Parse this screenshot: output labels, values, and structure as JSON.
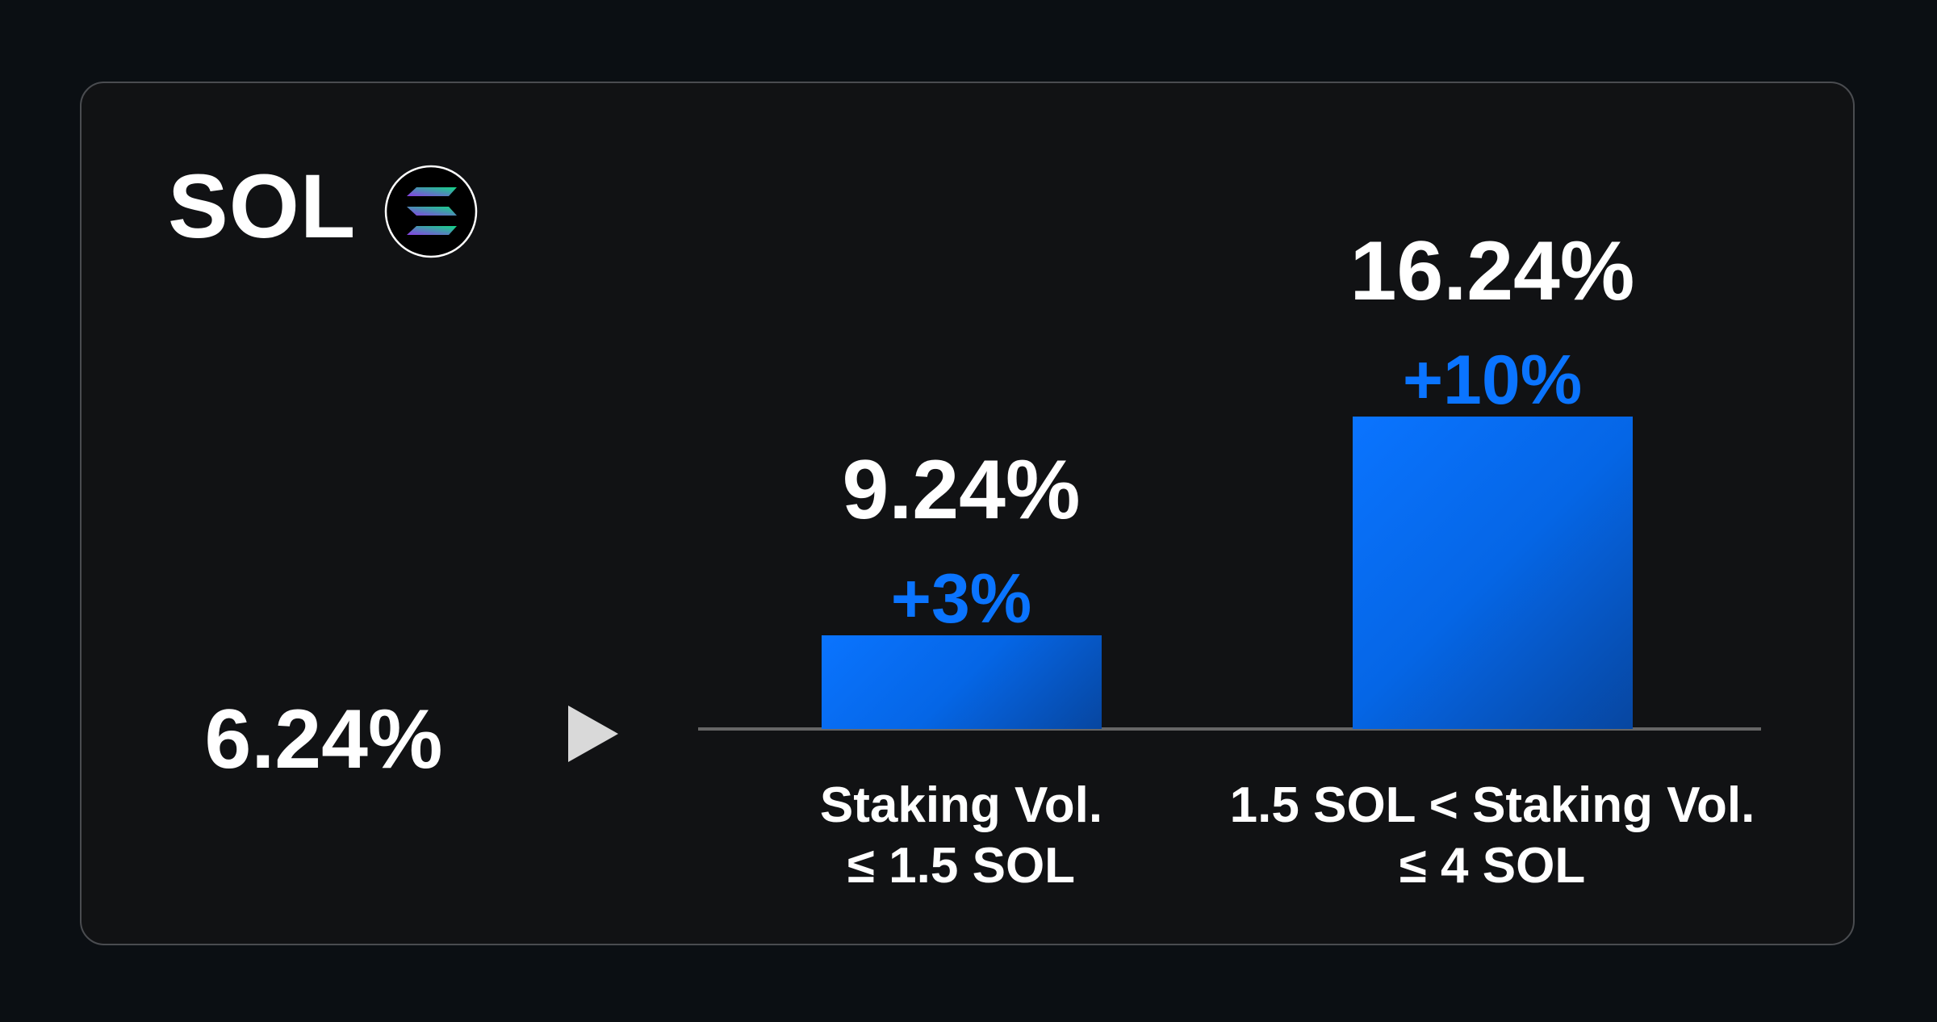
{
  "title": "SOL",
  "logo_icon": "solana-logo-icon",
  "chart_data": {
    "type": "bar",
    "title": "SOL",
    "base_rate": "6.24%",
    "base_value": 6.24,
    "categories": [
      "Staking Vol.\n≤ 1.5 SOL",
      "1.5 SOL < Staking Vol.\n≤ 4 SOL"
    ],
    "category_lines": [
      [
        "Staking Vol.",
        "≤ 1.5 SOL"
      ],
      [
        "1.5 SOL < Staking Vol.",
        "≤ 4 SOL"
      ]
    ],
    "values": [
      9.24,
      16.24
    ],
    "value_labels": [
      "9.24%",
      "16.24%"
    ],
    "bonus_values": [
      3,
      10
    ],
    "bonus_labels": [
      "+3%",
      "+10%"
    ],
    "ylim": [
      6.24,
      17.5
    ],
    "xlabel": "",
    "ylabel": "",
    "grid": false,
    "colors": {
      "bar": "#0a74ff",
      "bonus_text": "#0a74ff",
      "axis": "#666666"
    }
  }
}
